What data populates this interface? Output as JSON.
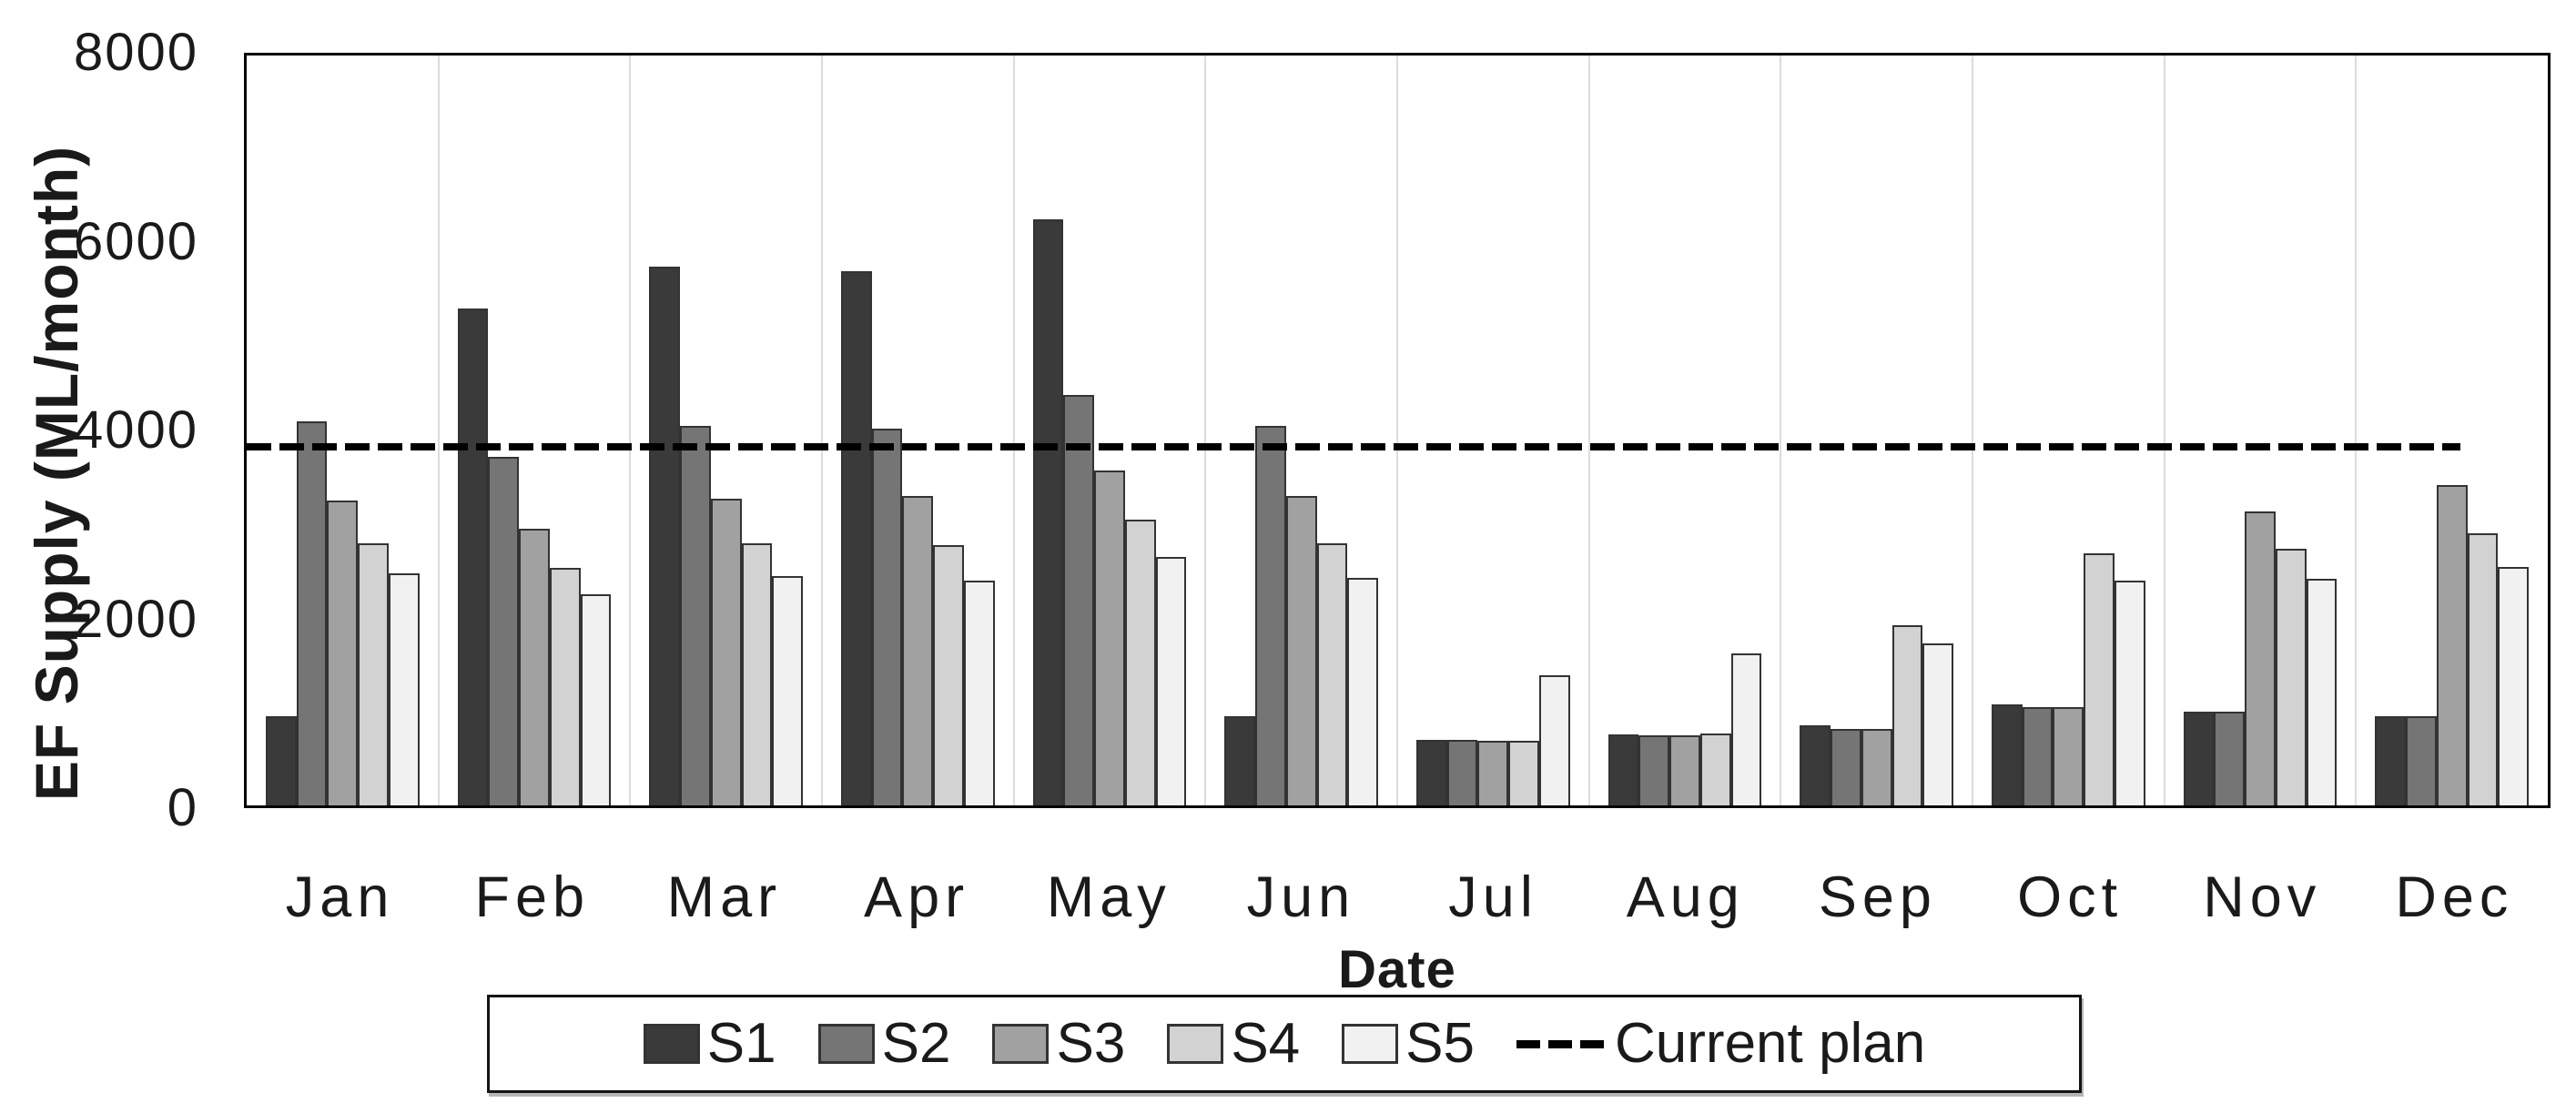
{
  "chart_data": {
    "type": "bar",
    "title": "",
    "xlabel": "Date",
    "ylabel": "EF Supply (ML/month)",
    "ylim": [
      0,
      8000
    ],
    "yticks": [
      0,
      2000,
      4000,
      6000,
      8000
    ],
    "grid": "vertical category separators only",
    "legend_position": "bottom",
    "categories": [
      "Jan",
      "Feb",
      "Mar",
      "Apr",
      "May",
      "Jun",
      "Jul",
      "Aug",
      "Sep",
      "Oct",
      "Nov",
      "Dec"
    ],
    "series": [
      {
        "name": "S1",
        "color": "#3a3a3a",
        "values": [
          950,
          5300,
          5750,
          5700,
          6250,
          950,
          700,
          760,
          850,
          1075,
          1000,
          950
        ]
      },
      {
        "name": "S2",
        "color": "#757575",
        "values": [
          4100,
          3720,
          4050,
          4020,
          4375,
          4050,
          700,
          750,
          820,
          1050,
          1000,
          950
        ]
      },
      {
        "name": "S3",
        "color": "#a1a1a1",
        "values": [
          3250,
          2950,
          3275,
          3300,
          3570,
          3300,
          690,
          750,
          820,
          1050,
          3140,
          3420
        ]
      },
      {
        "name": "S4",
        "color": "#d2d2d2",
        "values": [
          2800,
          2530,
          2800,
          2780,
          3050,
          2800,
          690,
          770,
          1920,
          2690,
          2740,
          2900
        ]
      },
      {
        "name": "S5",
        "color": "#f1f1f1",
        "values": [
          2475,
          2250,
          2450,
          2400,
          2650,
          2425,
          1390,
          1620,
          1725,
          2400,
          2420,
          2540
        ]
      }
    ],
    "reference_line": {
      "name": "Current plan",
      "value": 3830,
      "style": "dashed",
      "color": "#000000",
      "span_fraction": 0.962
    }
  },
  "style": {
    "bar_border_color": "#333333",
    "gridline_color": "#dcdcdc",
    "axis_color": "#000000"
  }
}
